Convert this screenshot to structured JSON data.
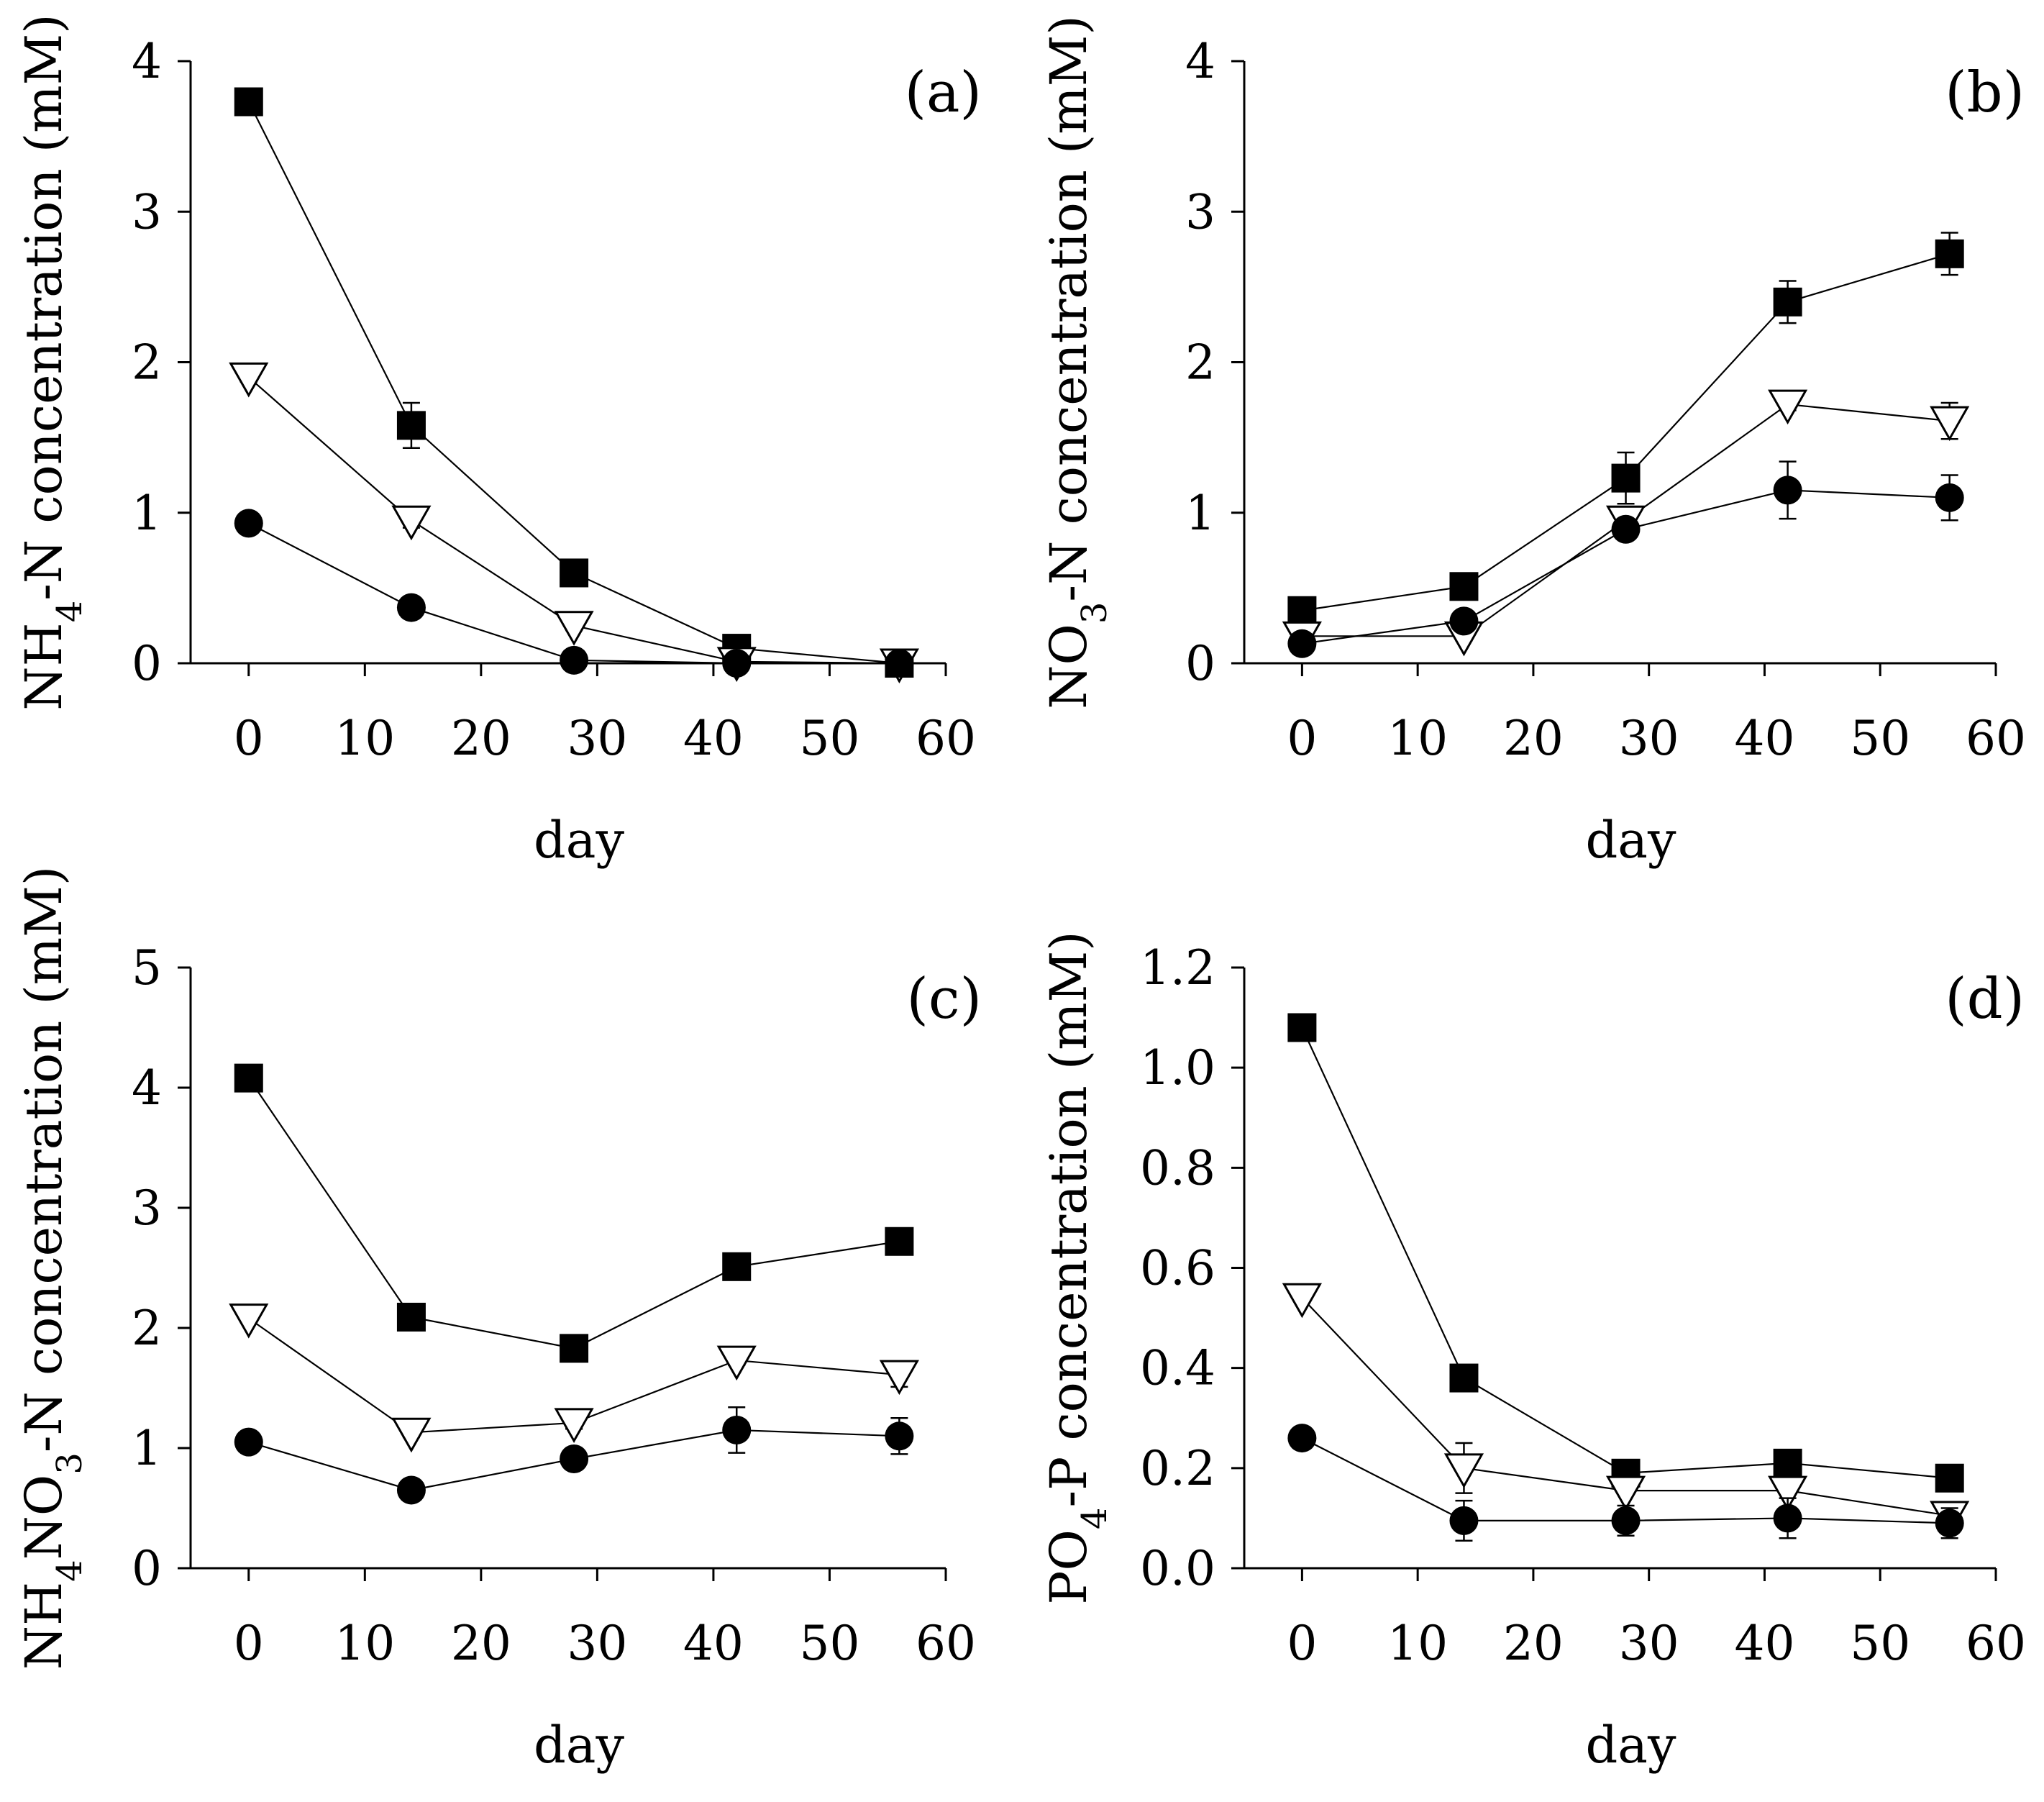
{
  "chart_data": [
    {
      "type": "line",
      "panel_tag": "(a)",
      "xlabel": "day",
      "ylabel": {
        "pre": "NH",
        "sub": "4",
        "post": "-N concentration (mM)"
      },
      "xlim": [
        -5,
        60
      ],
      "ylim": [
        0,
        4
      ],
      "xticks": [
        0,
        10,
        20,
        30,
        40,
        50,
        60
      ],
      "yticks": [
        0,
        1,
        2,
        3,
        4
      ],
      "ytick_labels": [
        "0",
        "1",
        "2",
        "3",
        "4"
      ],
      "x": [
        0,
        14,
        28,
        42,
        56
      ],
      "series": [
        {
          "marker": "square-filled",
          "values": [
            3.73,
            1.58,
            0.6,
            0.1,
            0.0
          ],
          "errors": [
            0.04,
            0.15,
            0.04,
            0.03,
            0.01
          ]
        },
        {
          "marker": "triangle-down-open",
          "values": [
            1.9,
            0.95,
            0.25,
            0.01,
            0.0
          ],
          "errors": [
            0.03,
            0.05,
            0.03,
            0.02,
            0.01
          ]
        },
        {
          "marker": "circle-filled",
          "values": [
            0.93,
            0.37,
            0.02,
            0.0,
            0.0
          ],
          "errors": [
            0.02,
            0.03,
            0.01,
            0.01,
            0.01
          ]
        }
      ]
    },
    {
      "type": "line",
      "panel_tag": "(b)",
      "xlabel": "day",
      "ylabel": {
        "pre": "NO",
        "sub": "3",
        "post": "-N concentration (mM)"
      },
      "xlim": [
        -5,
        60
      ],
      "ylim": [
        0,
        4
      ],
      "xticks": [
        0,
        10,
        20,
        30,
        40,
        50,
        60
      ],
      "yticks": [
        0,
        1,
        2,
        3,
        4
      ],
      "ytick_labels": [
        "0",
        "1",
        "2",
        "3",
        "4"
      ],
      "x": [
        0,
        14,
        28,
        42,
        56
      ],
      "series": [
        {
          "marker": "square-filled",
          "values": [
            0.35,
            0.51,
            1.23,
            2.4,
            2.72
          ],
          "errors": [
            0.03,
            0.05,
            0.17,
            0.14,
            0.14
          ]
        },
        {
          "marker": "triangle-down-open",
          "values": [
            0.18,
            0.18,
            0.95,
            1.72,
            1.61
          ],
          "errors": [
            0.02,
            0.03,
            0.06,
            0.04,
            0.12
          ]
        },
        {
          "marker": "circle-filled",
          "values": [
            0.13,
            0.28,
            0.89,
            1.15,
            1.1
          ],
          "errors": [
            0.02,
            0.03,
            0.05,
            0.19,
            0.15
          ]
        }
      ]
    },
    {
      "type": "line",
      "panel_tag": "(c)",
      "xlabel": "day",
      "ylabel": {
        "pre": "NH",
        "sub": "4",
        "mid": "NO",
        "sub2": "3",
        "post": "-N concentration (mM)"
      },
      "xlim": [
        -5,
        60
      ],
      "ylim": [
        0,
        5
      ],
      "xticks": [
        0,
        10,
        20,
        30,
        40,
        50,
        60
      ],
      "yticks": [
        0,
        1,
        2,
        3,
        4,
        5
      ],
      "ytick_labels": [
        "0",
        "1",
        "2",
        "3",
        "4",
        "5"
      ],
      "x": [
        0,
        14,
        28,
        42,
        56
      ],
      "series": [
        {
          "marker": "square-filled",
          "values": [
            4.08,
            2.09,
            1.83,
            2.51,
            2.72
          ],
          "errors": [
            0.04,
            0.05,
            0.04,
            0.05,
            0.1
          ]
        },
        {
          "marker": "triangle-down-open",
          "values": [
            2.08,
            1.13,
            1.21,
            1.73,
            1.61
          ],
          "errors": [
            0.03,
            0.04,
            0.05,
            0.04,
            0.1
          ]
        },
        {
          "marker": "circle-filled",
          "values": [
            1.05,
            0.65,
            0.91,
            1.15,
            1.1
          ],
          "errors": [
            0.03,
            0.03,
            0.05,
            0.19,
            0.15
          ]
        }
      ]
    },
    {
      "type": "line",
      "panel_tag": "(d)",
      "xlabel": "day",
      "ylabel": {
        "pre": "PO",
        "sub": "4",
        "post": "-P concentration (mM)"
      },
      "xlim": [
        -5,
        60
      ],
      "ylim": [
        0,
        1.2
      ],
      "xticks": [
        0,
        10,
        20,
        30,
        40,
        50,
        60
      ],
      "yticks": [
        0,
        0.2,
        0.4,
        0.6,
        0.8,
        1.0,
        1.2
      ],
      "ytick_labels": [
        "0.0",
        "0.2",
        "0.4",
        "0.6",
        "0.8",
        "1.0",
        "1.2"
      ],
      "x": [
        0,
        14,
        28,
        42,
        56
      ],
      "series": [
        {
          "marker": "square-filled",
          "values": [
            1.08,
            0.38,
            0.19,
            0.21,
            0.18
          ],
          "errors": [
            0.01,
            0.02,
            0.02,
            0.02,
            0.01
          ]
        },
        {
          "marker": "triangle-down-open",
          "values": [
            0.54,
            0.2,
            0.155,
            0.155,
            0.105
          ],
          "errors": [
            0.01,
            0.05,
            0.02,
            0.02,
            0.01
          ]
        },
        {
          "marker": "circle-filled",
          "values": [
            0.26,
            0.095,
            0.095,
            0.1,
            0.09
          ],
          "errors": [
            0.01,
            0.04,
            0.03,
            0.04,
            0.03
          ]
        }
      ]
    }
  ]
}
